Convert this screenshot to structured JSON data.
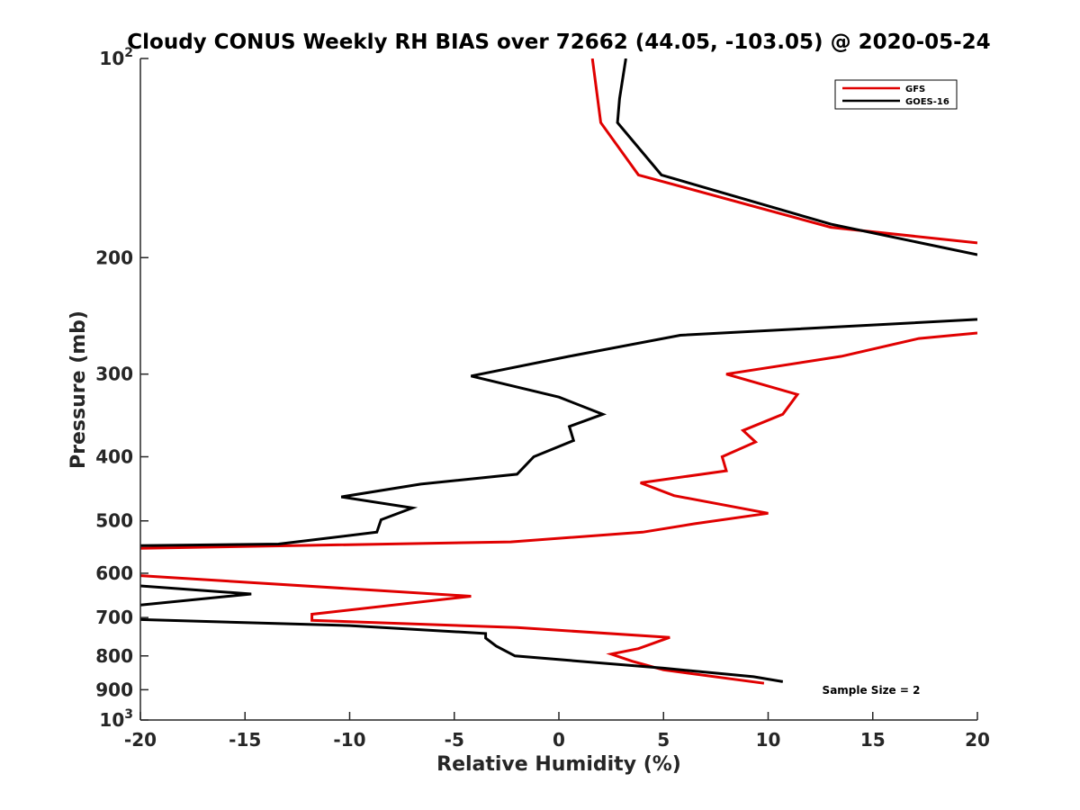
{
  "chart_data": {
    "type": "line",
    "title": "Cloudy CONUS Weekly RH BIAS over 72662 (44.05, -103.05) @ 2020-05-24",
    "xlabel": "Relative Humidity (%)",
    "ylabel": "Pressure (mb)",
    "xlim": [
      -20,
      20
    ],
    "ylim": [
      100,
      1000
    ],
    "y_scale": "log",
    "y_reversed": true,
    "x_ticks": [
      "-20",
      "-15",
      "-10",
      "-5",
      "0",
      "5",
      "10",
      "15",
      "20"
    ],
    "y_ticks": [
      {
        "value": 100,
        "base": "10",
        "exp": "2"
      },
      {
        "value": 200,
        "label": "200"
      },
      {
        "value": 300,
        "label": "300"
      },
      {
        "value": 400,
        "label": "400"
      },
      {
        "value": 500,
        "label": "500"
      },
      {
        "value": 600,
        "label": "600"
      },
      {
        "value": 700,
        "label": "700"
      },
      {
        "value": 800,
        "label": "800"
      },
      {
        "value": 900,
        "label": "900"
      },
      {
        "value": 1000,
        "base": "10",
        "exp": "3"
      }
    ],
    "grid": false,
    "legend_position": "top-right",
    "annotation": "Sample Size = 2",
    "series": [
      {
        "name": "GFS",
        "color": "#e00000",
        "points": [
          [
            1.6,
            100
          ],
          [
            2.0,
            125
          ],
          [
            3.8,
            150
          ],
          [
            13.0,
            180
          ],
          [
            20.0,
            190
          ],
          [
            null,
            null
          ],
          [
            20.0,
            260
          ],
          [
            17.2,
            265
          ],
          [
            13.5,
            282
          ],
          [
            8.0,
            300
          ],
          [
            11.4,
            322
          ],
          [
            10.7,
            345
          ],
          [
            8.8,
            365
          ],
          [
            9.4,
            380
          ],
          [
            7.8,
            400
          ],
          [
            8.0,
            420
          ],
          [
            3.9,
            438
          ],
          [
            5.5,
            458
          ],
          [
            10.0,
            487
          ],
          [
            6.5,
            505
          ],
          [
            4.0,
            520
          ],
          [
            -2.3,
            538
          ],
          [
            -20.0,
            550
          ],
          [
            null,
            null
          ],
          [
            -20.0,
            605
          ],
          [
            -4.2,
            650
          ],
          [
            -11.8,
            692
          ],
          [
            -11.8,
            707
          ],
          [
            -2.0,
            725
          ],
          [
            5.3,
            750
          ],
          [
            3.8,
            780
          ],
          [
            2.5,
            795
          ],
          [
            3.5,
            815
          ],
          [
            5.0,
            840
          ],
          [
            9.8,
            880
          ]
        ]
      },
      {
        "name": "GOES-16",
        "color": "#000000",
        "points": [
          [
            3.2,
            100
          ],
          [
            2.9,
            115
          ],
          [
            2.8,
            125
          ],
          [
            4.9,
            150
          ],
          [
            13.0,
            178
          ],
          [
            20.0,
            198
          ],
          [
            null,
            null
          ],
          [
            20.0,
            248
          ],
          [
            5.8,
            262
          ],
          [
            0.5,
            282
          ],
          [
            -4.2,
            302
          ],
          [
            0.0,
            325
          ],
          [
            2.1,
            345
          ],
          [
            0.5,
            360
          ],
          [
            0.7,
            378
          ],
          [
            -1.2,
            400
          ],
          [
            -2.0,
            425
          ],
          [
            -6.6,
            440
          ],
          [
            -10.4,
            460
          ],
          [
            -7.0,
            478
          ],
          [
            -8.5,
            498
          ],
          [
            -8.7,
            520
          ],
          [
            -13.4,
            542
          ],
          [
            -20.0,
            545
          ],
          [
            null,
            null
          ],
          [
            -20.0,
            627
          ],
          [
            -14.7,
            645
          ],
          [
            -20.0,
            670
          ],
          [
            null,
            null
          ],
          [
            -20.0,
            705
          ],
          [
            -10.0,
            720
          ],
          [
            -3.5,
            740
          ],
          [
            -3.5,
            752
          ],
          [
            -3.0,
            773
          ],
          [
            -2.1,
            800
          ],
          [
            5.0,
            835
          ],
          [
            9.3,
            860
          ],
          [
            10.7,
            875
          ]
        ]
      }
    ]
  }
}
